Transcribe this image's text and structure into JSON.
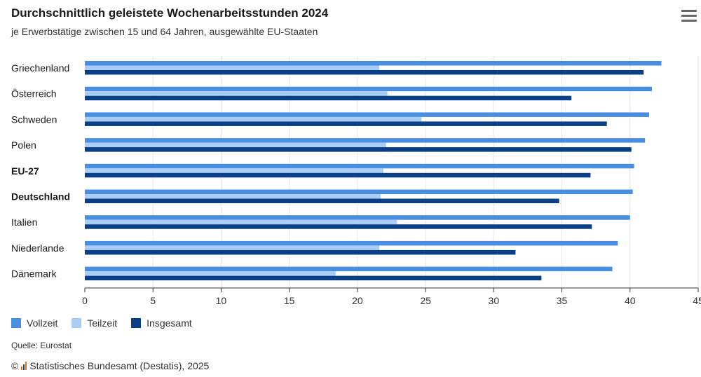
{
  "header": {
    "title": "Durchschnittlich geleistete Wochenarbeitsstunden 2024",
    "subtitle": "je Erwerbstätige zwischen 15 und 64 Jahren, ausgewählte EU-Staaten",
    "menu_icon": "hamburger-menu-icon"
  },
  "chart_data": {
    "type": "bar",
    "orientation": "horizontal",
    "categories": [
      "Griechenland",
      "Österreich",
      "Schweden",
      "Polen",
      "EU-27",
      "Deutschland",
      "Italien",
      "Niederlande",
      "Dänemark"
    ],
    "bold_categories": [
      "EU-27",
      "Deutschland"
    ],
    "series": [
      {
        "name": "Vollzeit",
        "color": "#4a8ee0",
        "values": [
          42.3,
          41.6,
          41.4,
          41.1,
          40.3,
          40.2,
          40.0,
          39.1,
          38.7
        ]
      },
      {
        "name": "Teilzeit",
        "color": "#a9cdf5",
        "values": [
          21.6,
          22.2,
          24.7,
          22.1,
          21.9,
          21.7,
          22.9,
          21.6,
          18.4
        ]
      },
      {
        "name": "Insgesamt",
        "color": "#0a3f85",
        "values": [
          41.0,
          35.7,
          38.3,
          40.1,
          37.1,
          34.8,
          37.2,
          31.6,
          33.5
        ]
      }
    ],
    "xlim": [
      0,
      45
    ],
    "xticks": [
      "0",
      "5",
      "10",
      "15",
      "20",
      "25",
      "30",
      "35",
      "40",
      "45"
    ],
    "grid": true,
    "legend_position": "bottom-left"
  },
  "legend": {
    "items": [
      {
        "label": "Vollzeit",
        "color": "#4a8ee0"
      },
      {
        "label": "Teilzeit",
        "color": "#a9cdf5"
      },
      {
        "label": "Insgesamt",
        "color": "#0a3f85"
      }
    ]
  },
  "footer": {
    "source": "Quelle: Eurostat",
    "copyright_symbol": "©",
    "copyright_text": "Statistisches Bundesamt (Destatis), 2025",
    "logo_icon": "destatis-logo-icon"
  }
}
